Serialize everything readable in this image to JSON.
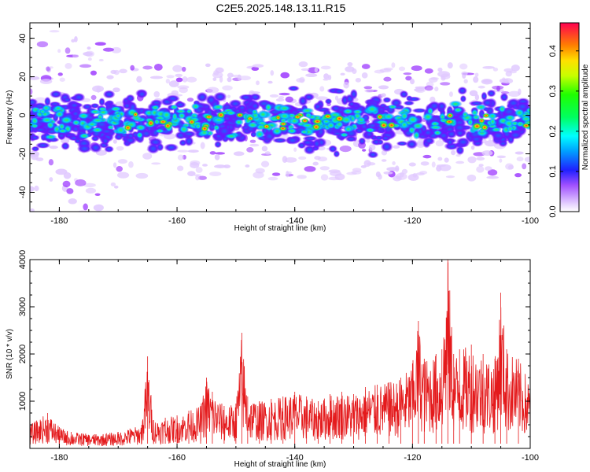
{
  "title": "C2E5.2025.148.13.11.R15",
  "chart_data": [
    {
      "type": "heatmap",
      "xlabel": "Height of straight line (km)",
      "ylabel": "Frequency (Hz)",
      "xlim": [
        -185,
        -100
      ],
      "ylim": [
        -50,
        48
      ],
      "xticks": [
        -180,
        -160,
        -140,
        -120,
        -100
      ],
      "yticks": [
        -40,
        -20,
        0,
        20,
        40
      ],
      "band": {
        "center_hz": -3,
        "half_width_hz": 10,
        "peak_amplitude": 0.45
      },
      "colorbar": {
        "label": "Normalized spectral amplitude",
        "range": [
          0.0,
          0.47
        ],
        "ticks": [
          0.0,
          0.1,
          0.2,
          0.3,
          0.4
        ]
      }
    },
    {
      "type": "line",
      "xlabel": "Height of straight line (km)",
      "ylabel": "SNR (10 * v/v)",
      "xlim": [
        -185,
        -100
      ],
      "ylim": [
        0,
        4000
      ],
      "xticks": [
        -180,
        -160,
        -140,
        -120,
        -100
      ],
      "yticks": [
        1000,
        2000,
        3000,
        4000
      ],
      "color": "#e41a1c",
      "series": [
        {
          "x": [
            -185,
            -182,
            -180,
            -178,
            -176,
            -174,
            -172,
            -170,
            -168,
            -166,
            -165,
            -164,
            -162,
            -160,
            -158,
            -156,
            -155,
            -154,
            -152,
            -150,
            -149,
            -148,
            -146,
            -144,
            -142,
            -140,
            -138,
            -136,
            -134,
            -132,
            -130,
            -128,
            -126,
            -124,
            -122,
            -120,
            -119,
            -118,
            -116,
            -115,
            -114,
            -113,
            -112,
            -110,
            -108,
            -106,
            -105,
            -104,
            -102,
            -100
          ],
          "values": [
            500,
            750,
            450,
            350,
            320,
            300,
            320,
            350,
            420,
            500,
            1950,
            600,
            650,
            700,
            800,
            900,
            1500,
            1200,
            900,
            950,
            2450,
            1100,
            1000,
            1050,
            1100,
            1200,
            1100,
            1000,
            1150,
            1200,
            1150,
            1300,
            1350,
            1400,
            1500,
            1800,
            2700,
            1900,
            2000,
            2100,
            4100,
            2000,
            2100,
            2200,
            2000,
            1900,
            3300,
            2100,
            1900,
            1400
          ]
        }
      ]
    }
  ]
}
